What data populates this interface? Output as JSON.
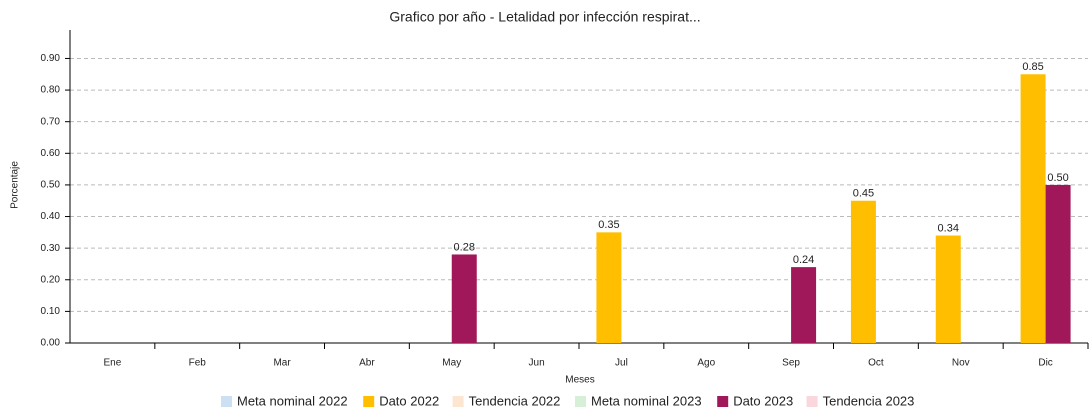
{
  "chart_data": {
    "type": "bar",
    "title": "Grafico por año - Letalidad por infección respirat...",
    "x_label": "Meses",
    "y_label": "Porcentaje",
    "categories": [
      "Ene",
      "Feb",
      "Mar",
      "Abr",
      "May",
      "Jun",
      "Jul",
      "Ago",
      "Sep",
      "Oct",
      "Nov",
      "Dic"
    ],
    "series": [
      {
        "name": "Meta nominal 2022",
        "color": "#c6dcf2",
        "hidden": true,
        "values": [
          null,
          null,
          null,
          null,
          null,
          null,
          null,
          null,
          null,
          null,
          null,
          null
        ]
      },
      {
        "name": "Dato 2022",
        "color": "#ffbf00",
        "values": [
          null,
          null,
          null,
          null,
          null,
          null,
          0.35,
          null,
          null,
          0.45,
          0.34,
          0.85
        ],
        "value_labels": [
          null,
          null,
          null,
          null,
          null,
          null,
          "0.35",
          null,
          null,
          "0.45",
          "0.34",
          "0.85"
        ]
      },
      {
        "name": "Tendencia 2022",
        "color": "#fde3cc",
        "hidden": true,
        "values": [
          null,
          null,
          null,
          null,
          null,
          null,
          null,
          null,
          null,
          null,
          null,
          null
        ]
      },
      {
        "name": "Meta nominal 2023",
        "color": "#d3ecd3",
        "hidden": true,
        "values": [
          null,
          null,
          null,
          null,
          null,
          null,
          null,
          null,
          null,
          null,
          null,
          null
        ]
      },
      {
        "name": "Dato 2023",
        "color": "#a0185a",
        "values": [
          null,
          null,
          null,
          null,
          0.28,
          null,
          null,
          null,
          0.24,
          null,
          null,
          0.5
        ],
        "value_labels": [
          null,
          null,
          null,
          null,
          "0.28",
          null,
          null,
          null,
          "0.24",
          null,
          null,
          "0.50"
        ]
      },
      {
        "name": "Tendencia 2023",
        "color": "#f8d3d8",
        "hidden": true,
        "values": [
          null,
          null,
          null,
          null,
          null,
          null,
          null,
          null,
          null,
          null,
          null,
          null
        ]
      }
    ],
    "ylim": [
      0,
      0.99
    ],
    "yticks": [
      {
        "value": 0,
        "label": "0.00"
      },
      {
        "value": 0.1,
        "label": "0.10"
      },
      {
        "value": 0.2,
        "label": "0.20"
      },
      {
        "value": 0.3,
        "label": "0.30"
      },
      {
        "value": 0.4,
        "label": "0.40"
      },
      {
        "value": 0.5,
        "label": "0.50"
      },
      {
        "value": 0.6,
        "label": "0.60"
      },
      {
        "value": 0.7,
        "label": "0.70"
      },
      {
        "value": 0.8,
        "label": "0.80"
      },
      {
        "value": 0.9,
        "label": "0.90"
      }
    ],
    "grid": true
  }
}
